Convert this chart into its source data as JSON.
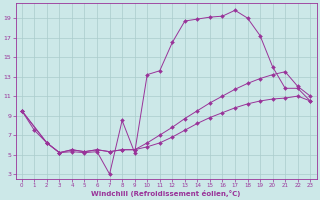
{
  "xlabel": "Windchill (Refroidissement éolien,°C)",
  "bg_color": "#cce8e8",
  "grid_color": "#aacccc",
  "line_color": "#993399",
  "xlim": [
    -0.5,
    23.5
  ],
  "ylim": [
    2.5,
    20.5
  ],
  "xticks": [
    0,
    1,
    2,
    3,
    4,
    5,
    6,
    7,
    8,
    9,
    10,
    11,
    12,
    13,
    14,
    15,
    16,
    17,
    18,
    19,
    20,
    21,
    22,
    23
  ],
  "yticks": [
    3,
    5,
    7,
    9,
    11,
    13,
    15,
    17,
    19
  ],
  "line1_x": [
    0,
    1,
    2,
    3,
    4,
    5,
    6,
    7,
    8,
    9,
    10,
    11,
    12,
    13,
    14,
    15,
    16,
    17,
    18,
    19,
    20,
    21,
    22,
    23
  ],
  "line1_y": [
    9.5,
    7.5,
    6.2,
    5.2,
    5.3,
    5.2,
    5.3,
    3.0,
    8.5,
    5.2,
    13.2,
    13.6,
    16.5,
    18.7,
    18.9,
    19.1,
    19.2,
    19.8,
    19.0,
    17.2,
    14.0,
    11.8,
    11.8,
    10.5
  ],
  "line2_x": [
    0,
    2,
    3,
    4,
    5,
    6,
    7,
    8,
    9,
    10,
    11,
    12,
    13,
    14,
    15,
    16,
    17,
    18,
    19,
    20,
    21,
    22,
    23
  ],
  "line2_y": [
    9.5,
    6.2,
    5.2,
    5.5,
    5.3,
    5.5,
    5.3,
    5.5,
    5.5,
    6.2,
    7.0,
    7.8,
    8.7,
    9.5,
    10.3,
    11.0,
    11.7,
    12.3,
    12.8,
    13.2,
    13.5,
    12.0,
    11.0
  ],
  "line3_x": [
    0,
    2,
    3,
    4,
    5,
    6,
    7,
    8,
    9,
    10,
    11,
    12,
    13,
    14,
    15,
    16,
    17,
    18,
    19,
    20,
    21,
    22,
    23
  ],
  "line3_y": [
    9.5,
    6.2,
    5.2,
    5.5,
    5.3,
    5.5,
    5.3,
    5.5,
    5.5,
    5.8,
    6.2,
    6.8,
    7.5,
    8.2,
    8.8,
    9.3,
    9.8,
    10.2,
    10.5,
    10.7,
    10.8,
    11.0,
    10.5
  ]
}
